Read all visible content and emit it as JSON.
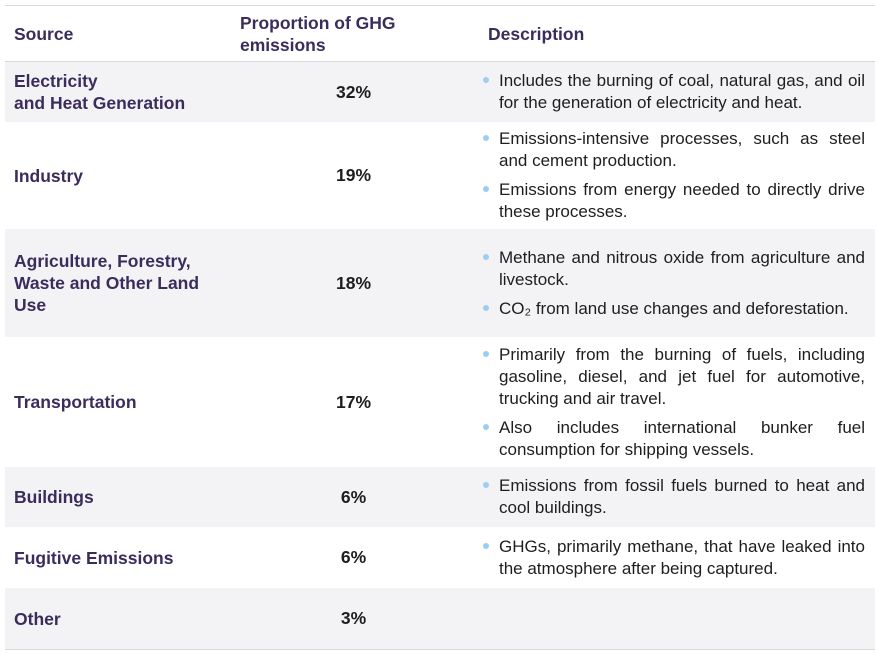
{
  "header": {
    "source": "Source",
    "proportion_line1": "Proportion of GHG",
    "proportion_line2": "emissions",
    "description": "Description"
  },
  "rows": [
    {
      "source_line1": "Electricity",
      "source_line2": "and Heat Generation",
      "proportion": "32%",
      "bullets": [
        "Includes the burning of coal, natural gas, and oil for the generation of electricity and heat."
      ]
    },
    {
      "source": "Industry",
      "proportion": "19%",
      "bullets": [
        "Emissions-intensive processes, such as steel and cement production.",
        "Emissions from energy needed to directly drive these processes."
      ]
    },
    {
      "source_line1": "Agriculture, Forestry,",
      "source_line2": "Waste and Other Land",
      "source_line3": "Use",
      "proportion": "18%",
      "bullets": [
        "Methane and nitrous oxide from agriculture and livestock.",
        "CO₂ from land use changes and deforestation."
      ]
    },
    {
      "source": "Transportation",
      "proportion": "17%",
      "bullets": [
        "Primarily from the burning of fuels, including gasoline, diesel, and jet fuel for automotive, trucking and air travel.",
        "Also includes international bunker fuel consumption for shipping vessels."
      ]
    },
    {
      "source": "Buildings",
      "proportion": "6%",
      "bullets": [
        "Emissions from fossil fuels burned to heat and cool buildings."
      ]
    },
    {
      "source": "Fugitive Emissions",
      "proportion": "6%",
      "bullets": [
        "GHGs, primarily methane, that have leaked into the atmosphere after being captured."
      ]
    },
    {
      "source": "Other",
      "proportion": "3%",
      "bullets": []
    }
  ],
  "colors": {
    "header_text": "#3a2d5c",
    "row_shading": "#f3f3f6",
    "bullet": "#9dcdf0",
    "body_text": "#1e1e1e"
  }
}
